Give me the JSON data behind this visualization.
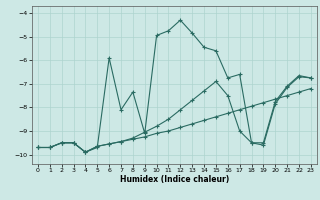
{
  "xlabel": "Humidex (Indice chaleur)",
  "xlim": [
    -0.5,
    23.5
  ],
  "ylim": [
    -10.4,
    -3.7
  ],
  "yticks": [
    -10,
    -9,
    -8,
    -7,
    -6,
    -5,
    -4
  ],
  "xticks": [
    0,
    1,
    2,
    3,
    4,
    5,
    6,
    7,
    8,
    9,
    10,
    11,
    12,
    13,
    14,
    15,
    16,
    17,
    18,
    19,
    20,
    21,
    22,
    23
  ],
  "bg_color": "#cde8e5",
  "line_color": "#2a6b62",
  "grid_color": "#aed4cf",
  "line1_x": [
    0,
    1,
    2,
    3,
    4,
    5,
    6,
    7,
    8,
    9,
    10,
    11,
    12,
    13,
    14,
    15,
    16,
    17,
    18,
    19,
    20,
    21,
    22,
    23
  ],
  "line1_y": [
    -9.7,
    -9.7,
    -9.5,
    -9.5,
    -9.9,
    -9.7,
    -5.9,
    -8.1,
    -7.35,
    -9.1,
    -4.95,
    -4.75,
    -4.3,
    -4.85,
    -5.45,
    -5.6,
    -6.75,
    -6.6,
    -9.5,
    -9.6,
    -7.85,
    -7.15,
    -6.7,
    -6.75
  ],
  "line2_x": [
    0,
    1,
    2,
    3,
    4,
    5,
    6,
    7,
    8,
    9,
    10,
    11,
    12,
    13,
    14,
    15,
    16,
    17,
    18,
    19,
    20,
    21,
    22,
    23
  ],
  "line2_y": [
    -9.7,
    -9.7,
    -9.5,
    -9.5,
    -9.9,
    -9.65,
    -9.55,
    -9.45,
    -9.35,
    -9.25,
    -9.1,
    -9.0,
    -8.85,
    -8.7,
    -8.55,
    -8.4,
    -8.25,
    -8.1,
    -7.95,
    -7.8,
    -7.65,
    -7.5,
    -7.35,
    -7.2
  ],
  "line3_x": [
    0,
    1,
    2,
    3,
    4,
    5,
    6,
    7,
    8,
    9,
    10,
    11,
    12,
    13,
    14,
    15,
    16,
    17,
    18,
    19,
    20,
    21,
    22,
    23
  ],
  "line3_y": [
    -9.7,
    -9.7,
    -9.5,
    -9.5,
    -9.9,
    -9.65,
    -9.55,
    -9.45,
    -9.3,
    -9.05,
    -8.8,
    -8.5,
    -8.1,
    -7.7,
    -7.3,
    -6.9,
    -7.5,
    -9.0,
    -9.5,
    -9.5,
    -7.75,
    -7.1,
    -6.65,
    -6.75
  ]
}
